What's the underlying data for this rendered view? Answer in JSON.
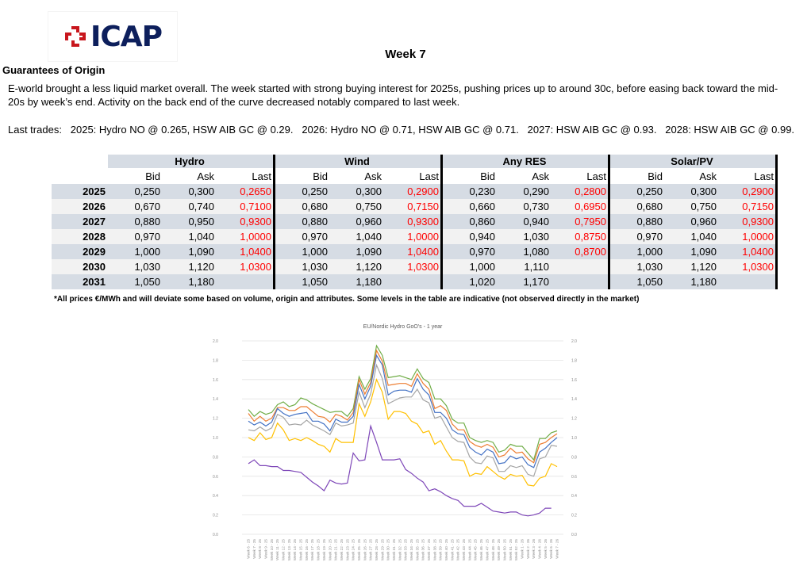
{
  "logo": {
    "text": "ICAP"
  },
  "header": {
    "week": "Week 7",
    "section_title": "Guarantees of Origin"
  },
  "commentary": "E-world brought a less liquid market overall. The week started with strong buying interest for 2025s, pushing prices up to around 30c, before easing back toward the mid-20s by week’s end. Activity on the back end of the curve decreased notably compared to last week.",
  "last_trades": "Last trades:   2025: Hydro NO @ 0.265, HSW AIB GC @ 0.29.   2026: Hydro NO @ 0.71, HSW AIB GC @ 0.71.   2027: HSW AIB GC @ 0.93.   2028: HSW AIB GC @ 0.99.",
  "table": {
    "groups": [
      "Hydro",
      "Wind",
      "Any RES",
      "Solar/PV"
    ],
    "subheaders": [
      "Bid",
      "Ask",
      "Last"
    ],
    "rows": [
      {
        "year": "2025",
        "vals": [
          [
            "0,250",
            "0,300",
            "0,2650"
          ],
          [
            "0,250",
            "0,300",
            "0,2900"
          ],
          [
            "0,230",
            "0,290",
            "0,2800"
          ],
          [
            "0,250",
            "0,300",
            "0,2900"
          ]
        ]
      },
      {
        "year": "2026",
        "vals": [
          [
            "0,670",
            "0,740",
            "0,7100"
          ],
          [
            "0,680",
            "0,750",
            "0,7150"
          ],
          [
            "0,660",
            "0,730",
            "0,6950"
          ],
          [
            "0,680",
            "0,750",
            "0,7150"
          ]
        ]
      },
      {
        "year": "2027",
        "vals": [
          [
            "0,880",
            "0,950",
            "0,9300"
          ],
          [
            "0,880",
            "0,960",
            "0,9300"
          ],
          [
            "0,860",
            "0,940",
            "0,7950"
          ],
          [
            "0,880",
            "0,960",
            "0,9300"
          ]
        ]
      },
      {
        "year": "2028",
        "vals": [
          [
            "0,970",
            "1,040",
            "1,0000"
          ],
          [
            "0,970",
            "1,040",
            "1,0000"
          ],
          [
            "0,940",
            "1,030",
            "0,8750"
          ],
          [
            "0,970",
            "1,040",
            "1,0000"
          ]
        ]
      },
      {
        "year": "2029",
        "vals": [
          [
            "1,000",
            "1,090",
            "1,0400"
          ],
          [
            "1,000",
            "1,090",
            "1,0400"
          ],
          [
            "0,970",
            "1,080",
            "0,8700"
          ],
          [
            "1,000",
            "1,090",
            "1,0400"
          ]
        ]
      },
      {
        "year": "2030",
        "vals": [
          [
            "1,030",
            "1,120",
            "1,0300"
          ],
          [
            "1,030",
            "1,120",
            "1,0300"
          ],
          [
            "1,000",
            "1,110",
            ""
          ],
          [
            "1,030",
            "1,120",
            "1,0300"
          ]
        ]
      },
      {
        "year": "2031",
        "vals": [
          [
            "1,050",
            "1,180",
            ""
          ],
          [
            "1,050",
            "1,180",
            ""
          ],
          [
            "1,020",
            "1,170",
            ""
          ],
          [
            "1,050",
            "1,180",
            ""
          ]
        ]
      }
    ],
    "footnote": "*All prices €/MWh and will deviate some based on volume, origin and attributes. Some levels in the table are indicative (not observed directly in the market)"
  },
  "chart_data": {
    "type": "line",
    "title": "EU/Nordic Hydro GoO's - 1 year",
    "ylim": [
      0,
      2.0
    ],
    "yticks": [
      "0.0",
      "0.2",
      "0.4",
      "0.6",
      "0.8",
      "1.0",
      "1.2",
      "1.4",
      "1.6",
      "1.8",
      "2.0"
    ],
    "grid": true,
    "x": [
      "Week 6 - 25",
      "Week 7 - 25",
      "Week 8 - 25",
      "Week 9 - 25",
      "Week 10 - 25",
      "Week 11 - 25",
      "Week 12 - 25",
      "Week 13 - 25",
      "Week 14 - 25",
      "Week 15 - 25",
      "Week 16 - 25",
      "Week 17 - 25",
      "Week 18 - 25",
      "Week 19 - 25",
      "Week 20 - 25",
      "Week 21 - 25",
      "Week 22 - 25",
      "Week 23 - 25",
      "Week 24 - 25",
      "Week 25 - 25",
      "Week 26 - 25",
      "Week 27 - 25",
      "Week 28 - 25",
      "Week 29 - 25",
      "Week 30 - 25",
      "Week 31 - 25",
      "Week 32 - 25",
      "Week 33 - 25",
      "Week 34 - 25",
      "Week 35 - 25",
      "Week 36 - 25",
      "Week 37 - 25",
      "Week 38 - 25",
      "Week 39 - 25",
      "Week 40 - 25",
      "Week 41 - 25",
      "Week 42 - 25",
      "Week 43 - 25",
      "Week 44 - 25",
      "Week 45 - 25",
      "Week 46 - 25",
      "Week 47 - 25",
      "Week 48 - 25",
      "Week 49 - 25",
      "Week 50 - 25",
      "Week 51 - 25",
      "Week 52 - 25",
      "Week 1 - 26",
      "Week 2 - 26",
      "Week 3 - 26",
      "Week 4 - 26",
      "Week 5 - 26",
      "Week 6 - 26",
      "Week 7 - 26"
    ],
    "series": [
      {
        "color": "#70ad47",
        "values": [
          1.29,
          1.22,
          1.27,
          1.24,
          1.26,
          1.34,
          1.37,
          1.32,
          1.34,
          1.41,
          1.39,
          1.35,
          1.32,
          1.29,
          1.26,
          1.27,
          1.27,
          1.22,
          1.3,
          1.63,
          1.5,
          1.61,
          1.95,
          1.85,
          1.62,
          1.63,
          1.64,
          1.62,
          1.6,
          1.71,
          1.61,
          1.57,
          1.4,
          1.4,
          1.33,
          1.19,
          1.15,
          1.15,
          1.0,
          0.97,
          0.95,
          0.97,
          0.95,
          0.85,
          0.87,
          0.93,
          0.91,
          0.91,
          0.84,
          0.77,
          0.99,
          0.99,
          1.05,
          1.07
        ]
      },
      {
        "color": "#ed7d31",
        "values": [
          1.25,
          1.17,
          1.22,
          1.17,
          1.2,
          1.31,
          1.31,
          1.28,
          1.28,
          1.32,
          1.32,
          1.27,
          1.22,
          1.21,
          1.16,
          1.24,
          1.22,
          1.18,
          1.26,
          1.6,
          1.45,
          1.57,
          1.9,
          1.79,
          1.54,
          1.55,
          1.56,
          1.56,
          1.53,
          1.66,
          1.56,
          1.5,
          1.3,
          1.33,
          1.28,
          1.14,
          1.08,
          1.08,
          0.96,
          0.92,
          0.9,
          0.93,
          0.9,
          0.8,
          0.82,
          0.89,
          0.84,
          0.85,
          0.78,
          0.74,
          0.93,
          0.95,
          1.0,
          1.04
        ]
      },
      {
        "color": "#4472c4",
        "values": [
          1.17,
          1.13,
          1.16,
          1.12,
          1.16,
          1.3,
          1.25,
          1.22,
          1.24,
          1.25,
          1.26,
          1.17,
          1.17,
          1.14,
          1.07,
          1.19,
          1.16,
          1.16,
          1.22,
          1.55,
          1.4,
          1.53,
          1.85,
          1.75,
          1.44,
          1.48,
          1.49,
          1.49,
          1.47,
          1.61,
          1.5,
          1.44,
          1.26,
          1.26,
          1.2,
          1.08,
          1.04,
          1.03,
          0.9,
          0.85,
          0.82,
          0.88,
          0.85,
          0.73,
          0.74,
          0.81,
          0.78,
          0.8,
          0.72,
          0.69,
          0.85,
          0.89,
          0.95,
          1.0
        ]
      },
      {
        "color": "#a5a5a5",
        "values": [
          1.08,
          1.07,
          1.11,
          1.07,
          1.1,
          1.24,
          1.21,
          1.13,
          1.14,
          1.13,
          1.18,
          1.13,
          1.1,
          1.07,
          1.03,
          1.15,
          1.12,
          1.13,
          1.15,
          1.47,
          1.31,
          1.45,
          1.75,
          1.61,
          1.35,
          1.38,
          1.41,
          1.42,
          1.42,
          1.5,
          1.39,
          1.36,
          1.2,
          1.22,
          1.11,
          1.0,
          0.96,
          0.95,
          0.8,
          0.74,
          0.73,
          0.81,
          0.79,
          0.65,
          0.65,
          0.71,
          0.69,
          0.71,
          0.62,
          0.6,
          0.78,
          0.8,
          0.92,
          0.91
        ]
      },
      {
        "color": "#ffc000",
        "values": [
          1.0,
          0.97,
          1.05,
          0.98,
          1.0,
          1.15,
          1.08,
          0.97,
          0.99,
          0.97,
          1.0,
          0.97,
          0.93,
          0.91,
          0.85,
          0.99,
          0.95,
          0.95,
          0.95,
          1.35,
          1.22,
          1.37,
          1.6,
          1.47,
          1.19,
          1.27,
          1.27,
          1.25,
          1.17,
          1.14,
          1.05,
          1.07,
          0.93,
          0.97,
          0.86,
          0.77,
          0.77,
          0.76,
          0.6,
          0.63,
          0.62,
          0.7,
          0.65,
          0.6,
          0.57,
          0.62,
          0.6,
          0.61,
          0.51,
          0.5,
          0.58,
          0.6,
          0.73,
          0.7
        ]
      },
      {
        "color": "#7e47b8",
        "values": [
          0.73,
          0.77,
          0.71,
          0.71,
          0.7,
          0.7,
          0.66,
          0.66,
          0.65,
          0.64,
          0.59,
          0.54,
          0.5,
          0.45,
          0.56,
          0.53,
          0.52,
          0.53,
          0.84,
          0.76,
          0.77,
          1.12,
          0.95,
          0.77,
          0.77,
          0.77,
          0.78,
          0.67,
          0.63,
          0.58,
          0.54,
          0.45,
          0.47,
          0.44,
          0.4,
          0.37,
          0.35,
          0.29,
          0.29,
          0.29,
          0.32,
          0.28,
          0.24,
          0.23,
          0.22,
          0.23,
          0.23,
          0.2,
          0.19,
          0.2,
          0.22,
          0.27,
          0.27,
          null
        ]
      }
    ]
  }
}
